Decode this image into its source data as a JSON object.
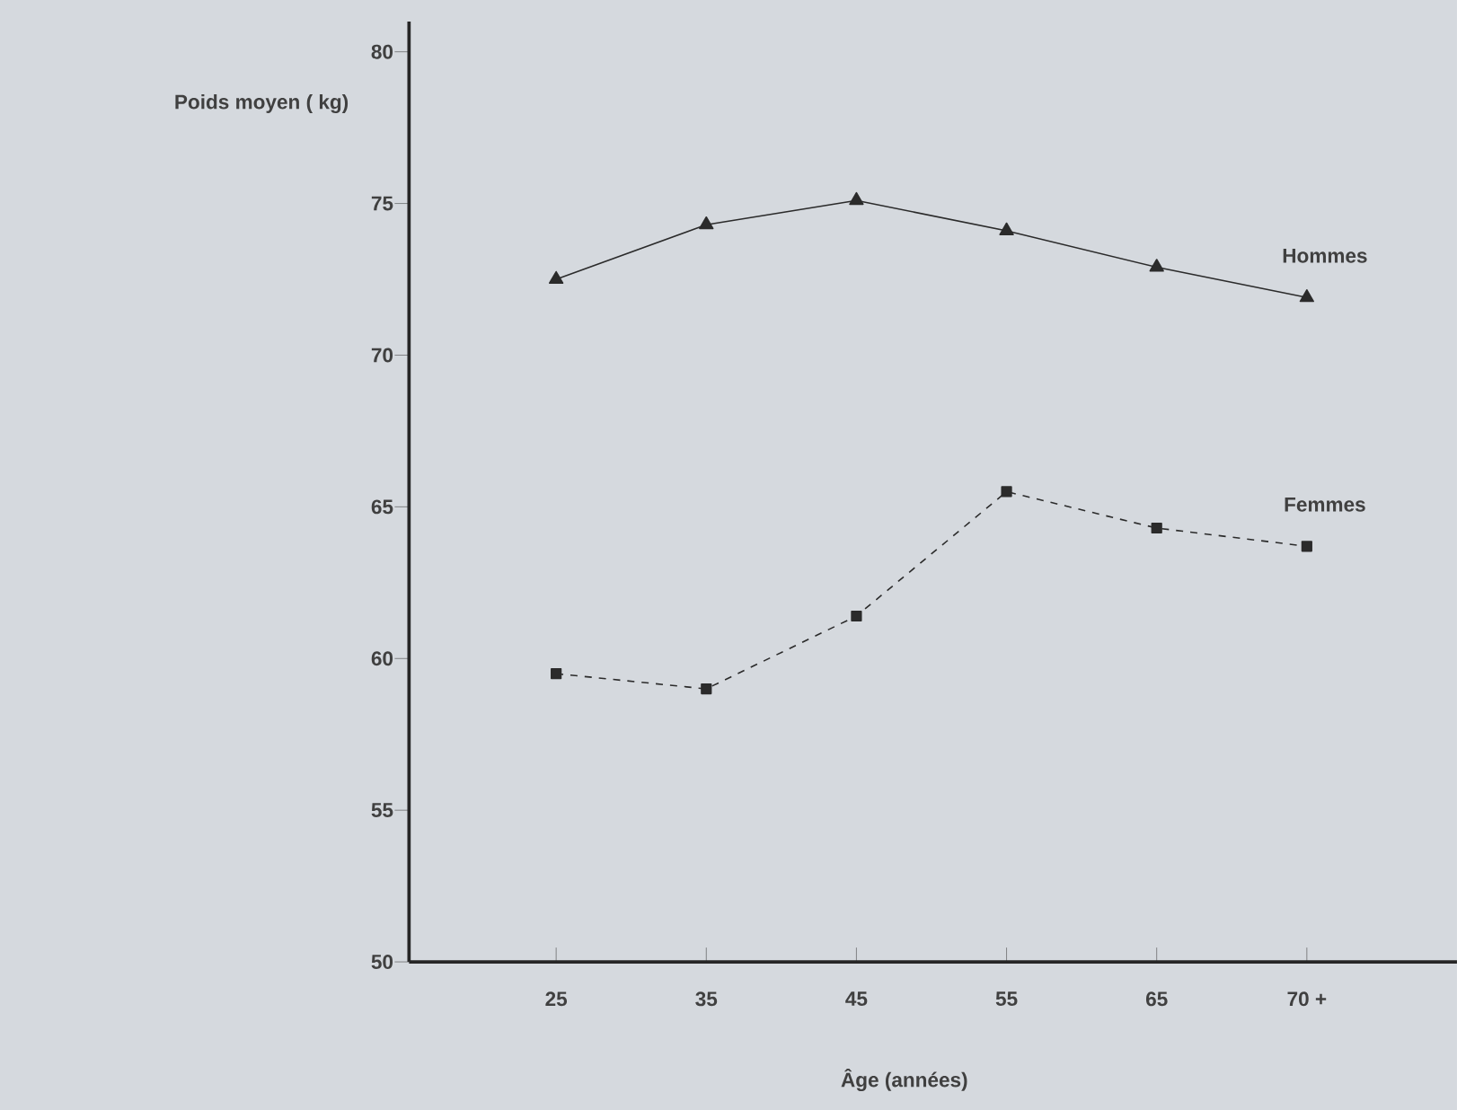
{
  "chart_data": {
    "type": "line",
    "ylabel": "Poids moyen ( kg)",
    "xlabel": "Âge (années)",
    "categories": [
      "25",
      "35",
      "45",
      "55",
      "65",
      "70 +"
    ],
    "ylim": [
      50,
      81
    ],
    "yticks": [
      50,
      55,
      60,
      65,
      70,
      75,
      80
    ],
    "grid": false,
    "legend": false,
    "series": [
      {
        "name": "Hommes",
        "color": "#2b2b2b",
        "marker": "triangle",
        "line_style": "solid",
        "values": [
          72.5,
          74.3,
          75.1,
          74.1,
          72.9,
          71.9
        ]
      },
      {
        "name": "Femmes",
        "color": "#2b2b2b",
        "marker": "square",
        "line_style": "dashed",
        "values": [
          59.5,
          59.0,
          61.4,
          65.5,
          64.3,
          63.7
        ]
      }
    ]
  }
}
